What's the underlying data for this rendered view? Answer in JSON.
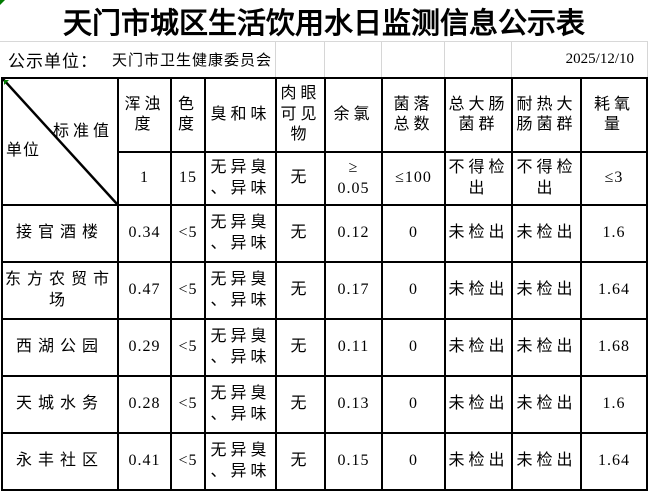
{
  "title": "天门市城区生活饮用水日监测信息公示表",
  "info": {
    "publisher_label": "公示单位：",
    "publisher_name": "天门市卫生健康委员会",
    "date": "2025/12/10"
  },
  "table": {
    "corner_top_label": "标准值",
    "corner_bottom_label": "单位",
    "columns": [
      "浑浊\n度",
      "色\n度",
      "臭和味",
      "肉眼\n可见\n物",
      "余氯",
      "菌落\n总数",
      "总大肠\n菌群",
      "耐热大\n肠菌群",
      "耗氧\n量"
    ],
    "standard_values": [
      "1",
      "15",
      "无异臭\n、异味",
      "无",
      "≥\n0.05",
      "≤100",
      "不得检\n出",
      "不得检\n出",
      "≤3"
    ],
    "rows": [
      {
        "name": "接官酒楼",
        "values": [
          "0.34",
          "<5",
          "无异臭\n、异味",
          "无",
          "0.12",
          "0",
          "未检出",
          "未检出",
          "1.6"
        ]
      },
      {
        "name": "东方农贸市\n场",
        "values": [
          "0.47",
          "<5",
          "无异臭\n、异味",
          "无",
          "0.17",
          "0",
          "未检出",
          "未检出",
          "1.64"
        ]
      },
      {
        "name": "西湖公园",
        "values": [
          "0.29",
          "<5",
          "无异臭\n、异味",
          "无",
          "0.11",
          "0",
          "未检出",
          "未检出",
          "1.68"
        ]
      },
      {
        "name": "天城水务",
        "values": [
          "0.28",
          "<5",
          "无异臭\n、异味",
          "无",
          "0.13",
          "0",
          "未检出",
          "未检出",
          "1.6"
        ]
      },
      {
        "name": "永丰社区",
        "values": [
          "0.41",
          "<5",
          "无异臭\n、异味",
          "无",
          "0.15",
          "0",
          "未检出",
          "未检出",
          "1.64"
        ]
      }
    ]
  },
  "colors": {
    "border": "#000000",
    "gridline": "#d6d6d6",
    "error_indicator": "#007a00",
    "text": "#000000",
    "background": "#ffffff"
  }
}
